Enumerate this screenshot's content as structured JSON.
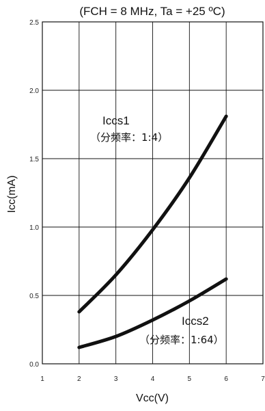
{
  "chart_data": {
    "type": "line",
    "title": "(FCH = 8 MHz, Ta = +25 ºC)",
    "xlabel": "Vcc(V)",
    "ylabel": "Icc(mA)",
    "xlim": [
      1,
      7
    ],
    "ylim": [
      0.0,
      2.5
    ],
    "x_ticks": [
      "1",
      "2",
      "3",
      "4",
      "5",
      "6",
      "7"
    ],
    "y_ticks": [
      "0.0",
      "0.5",
      "1.0",
      "1.5",
      "2.0",
      "2.5"
    ],
    "grid": true,
    "series": [
      {
        "name": "Iccs1",
        "annotation": "（分频率：1:4）",
        "x": [
          2,
          3,
          4,
          5,
          6
        ],
        "y": [
          0.38,
          0.65,
          0.98,
          1.36,
          1.81
        ]
      },
      {
        "name": "Iccs2",
        "annotation": "（分频率：1:64）",
        "x": [
          2,
          3,
          4,
          5,
          6
        ],
        "y": [
          0.12,
          0.2,
          0.32,
          0.46,
          0.62
        ]
      }
    ]
  }
}
